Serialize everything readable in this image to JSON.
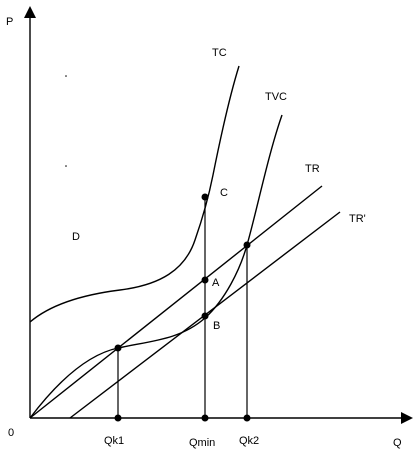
{
  "axes": {
    "y_label": "P",
    "x_label": "Q",
    "origin_label": "0"
  },
  "curves": {
    "tc": "TC",
    "tvc": "TVC",
    "tr": "TR",
    "tr_prime": "TR'"
  },
  "points": {
    "c": "C",
    "a": "A",
    "b": "B",
    "d": "D"
  },
  "x_marks": {
    "qk1": "Qk1",
    "qmin": "Qmin",
    "qk2": "Qk2"
  }
}
